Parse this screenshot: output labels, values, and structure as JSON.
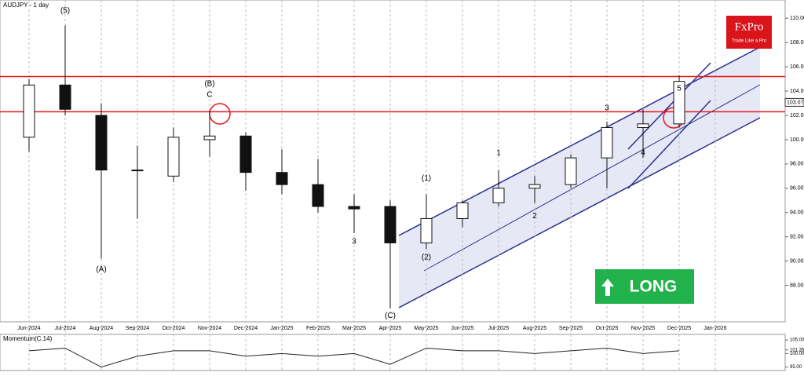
{
  "chart_data": {
    "type": "candlestick",
    "title": "AUDJPY - 1 day",
    "categories": [
      "Jun-2024",
      "Jul-2024",
      "Aug-2024",
      "Sep-2024",
      "Oct-2024",
      "Nov-2024",
      "Dec-2024",
      "Jan-2025",
      "Feb-2025",
      "Mar-2025",
      "Apr-2025",
      "May-2025",
      "Jun-2025",
      "Jul-2025",
      "Aug-2025",
      "Sep-2025",
      "Oct-2025",
      "Nov-2025",
      "Dec-2025",
      "Jan-2026"
    ],
    "open": [
      100.2,
      104.5,
      102.0,
      97.5,
      97.0,
      100.0,
      100.3,
      97.3,
      96.3,
      94.5,
      94.5,
      91.5,
      93.5,
      94.8,
      96.0,
      96.3,
      98.5,
      101.0,
      101.3,
      null
    ],
    "high": [
      105.0,
      109.4,
      103.0,
      99.5,
      101.0,
      102.4,
      100.6,
      99.2,
      98.4,
      95.5,
      95.0,
      95.5,
      95.0,
      97.5,
      97.0,
      98.8,
      101.5,
      102.5,
      105.3,
      null
    ],
    "low": [
      99.0,
      102.0,
      90.2,
      93.5,
      96.5,
      98.6,
      95.8,
      95.5,
      94.0,
      92.3,
      86.1,
      91.0,
      92.8,
      94.5,
      94.8,
      96.0,
      96.0,
      98.5,
      101.0,
      null
    ],
    "close": [
      104.5,
      102.5,
      97.5,
      97.5,
      100.2,
      100.3,
      97.3,
      96.3,
      94.5,
      94.3,
      91.5,
      93.5,
      94.8,
      96.0,
      96.3,
      98.5,
      101.0,
      101.3,
      104.8,
      null
    ],
    "ylim": [
      85,
      111.5
    ],
    "yticks": [
      {
        "value": 88,
        "label": "88.00"
      },
      {
        "value": 90,
        "label": "90.00"
      },
      {
        "value": 92,
        "label": "92.00"
      },
      {
        "value": 94,
        "label": "94.00"
      },
      {
        "value": 96,
        "label": "96.00"
      },
      {
        "value": 98,
        "label": "98.00"
      },
      {
        "value": 100,
        "label": "100.00"
      },
      {
        "value": 102,
        "label": "102.00"
      },
      {
        "value": 104,
        "label": "104.00"
      },
      {
        "value": 106,
        "label": "106.00"
      },
      {
        "value": 108,
        "label": "108.00"
      },
      {
        "value": 110,
        "label": "110.00"
      }
    ],
    "last_price": 103.07,
    "levels": [
      105.2,
      102.3
    ],
    "level_color": "#e8141c",
    "annotations": [
      {
        "text": "(5)",
        "category": "Jul-2024",
        "price": 110.6
      },
      {
        "text": "(A)",
        "category": "Aug-2024",
        "price": 89.3
      },
      {
        "text": "(B)",
        "category": "Nov-2024",
        "price": 104.6
      },
      {
        "text": "C",
        "category": "Nov-2024",
        "price": 103.7
      },
      {
        "text": "3",
        "category": "Mar-2025",
        "price": 91.6
      },
      {
        "text": "(C)",
        "category": "Apr-2025",
        "price": 85.5
      },
      {
        "text": "(1)",
        "category": "May-2025",
        "price": 96.8
      },
      {
        "text": "(2)",
        "category": "May-2025",
        "price": 90.3
      },
      {
        "text": "1",
        "category": "Jul-2025",
        "price": 98.9
      },
      {
        "text": "2",
        "category": "Aug-2025",
        "price": 93.7
      },
      {
        "text": "3",
        "category": "Oct-2025",
        "price": 102.6
      },
      {
        "text": "4",
        "category": "Nov-2025",
        "price": 98.9
      },
      {
        "text": "5",
        "category": "Dec-2025",
        "price": 104.2
      }
    ],
    "momentum": {
      "title": "Momentum(C,14)",
      "values": [
        101,
        102,
        95,
        99,
        101,
        101,
        99,
        100,
        99,
        100,
        96,
        102,
        101,
        101,
        100,
        101,
        102,
        100,
        101,
        null
      ],
      "ylim": [
        94,
        106.5
      ],
      "yticks": [
        {
          "value": 95,
          "label": "95.00"
        },
        {
          "value": 100,
          "label": "100.00"
        },
        {
          "value": 101.35,
          "label": "101.35"
        },
        {
          "value": 105,
          "label": "105.00"
        }
      ]
    },
    "signal": "LONG",
    "brand": "FxPro",
    "slogan": "Trade Like a Pro"
  }
}
